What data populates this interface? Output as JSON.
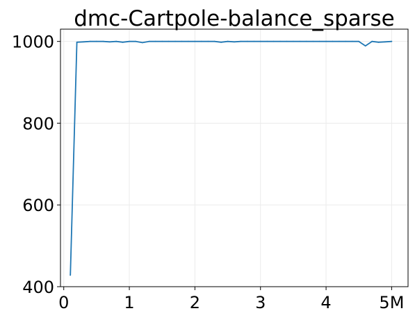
{
  "chart_data": {
    "type": "line",
    "title": "dmc-Cartpole-balance_sparse",
    "xlabel": "",
    "ylabel": "",
    "xlim": [
      -0.05,
      5.25
    ],
    "ylim": [
      400,
      1030
    ],
    "grid": true,
    "x_ticks": [
      {
        "value": 0,
        "label": "0"
      },
      {
        "value": 1,
        "label": "1"
      },
      {
        "value": 2,
        "label": "2"
      },
      {
        "value": 3,
        "label": "3"
      },
      {
        "value": 4,
        "label": "4"
      },
      {
        "value": 5,
        "label": "5M"
      }
    ],
    "y_ticks": [
      {
        "value": 400,
        "label": "400"
      },
      {
        "value": 600,
        "label": "600"
      },
      {
        "value": 800,
        "label": "800"
      },
      {
        "value": 1000,
        "label": "1000"
      }
    ],
    "series": [
      {
        "color": "#1f77b4",
        "x": [
          0.1,
          0.2,
          0.3,
          0.4,
          0.5,
          0.6,
          0.7,
          0.8,
          0.9,
          1.0,
          1.1,
          1.2,
          1.3,
          1.4,
          1.5,
          1.6,
          1.7,
          1.8,
          1.9,
          2.0,
          2.1,
          2.2,
          2.3,
          2.4,
          2.5,
          2.6,
          2.7,
          2.8,
          2.9,
          3.0,
          3.1,
          3.2,
          3.3,
          3.4,
          3.5,
          3.6,
          3.7,
          3.8,
          3.9,
          4.0,
          4.1,
          4.2,
          4.3,
          4.4,
          4.5,
          4.6,
          4.7,
          4.8,
          4.9,
          5.0
        ],
        "y": [
          428,
          998,
          999,
          1000,
          1000,
          1000,
          999,
          1000,
          998,
          1000,
          1000,
          997,
          1000,
          1000,
          1000,
          1000,
          1000,
          1000,
          1000,
          1000,
          1000,
          1000,
          1000,
          998,
          1000,
          999,
          1000,
          1000,
          1000,
          1000,
          1000,
          1000,
          1000,
          1000,
          1000,
          1000,
          1000,
          1000,
          1000,
          1000,
          1000,
          1000,
          1000,
          1000,
          1000,
          989,
          1000,
          998,
          999,
          1000
        ]
      }
    ]
  }
}
